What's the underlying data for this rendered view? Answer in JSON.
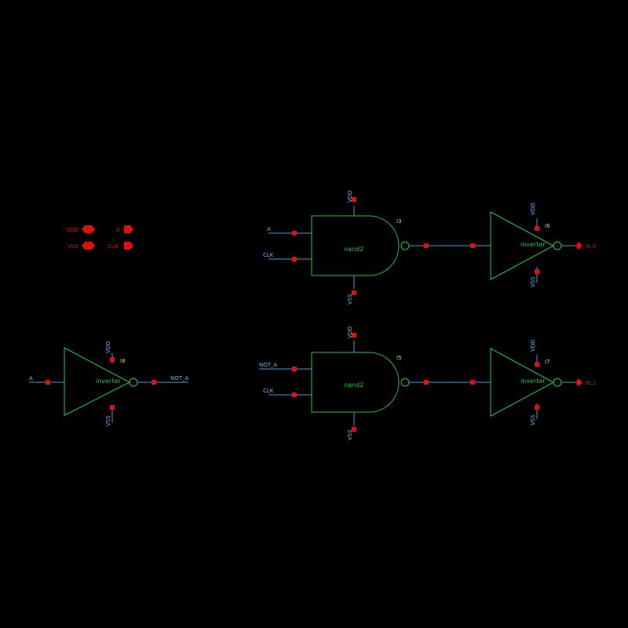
{
  "ports": {
    "vdd": "VDD",
    "vss": "VSS",
    "a": "A",
    "clk": "CLK",
    "bl0": "BL0",
    "bl1": "BL1"
  },
  "instances": {
    "i8": {
      "name": "I8",
      "cell": "inverter",
      "in": "A",
      "out": "NOT_A",
      "vdd": "VDD",
      "vss": "VSS"
    },
    "i3": {
      "name": "I3",
      "cell": "nand2",
      "in1": "A",
      "in2": "CLK",
      "vdd": "VDD",
      "vss": "VSS"
    },
    "i5": {
      "name": "I5",
      "cell": "nand2",
      "in1": "NOT_A",
      "in2": "CLK",
      "vdd": "VDD",
      "vss": "VSS"
    },
    "i6": {
      "name": "I6",
      "cell": "inverter",
      "vdd": "VDD",
      "vss": "VSS"
    },
    "i7": {
      "name": "I7",
      "cell": "inverter",
      "vdd": "VDD",
      "vss": "VSS"
    }
  },
  "colors": {
    "background": "#000000",
    "symbol": "#1ec84a",
    "wire": "#4a9cd8",
    "pin": "#e01010",
    "instance": "#e8d060"
  }
}
